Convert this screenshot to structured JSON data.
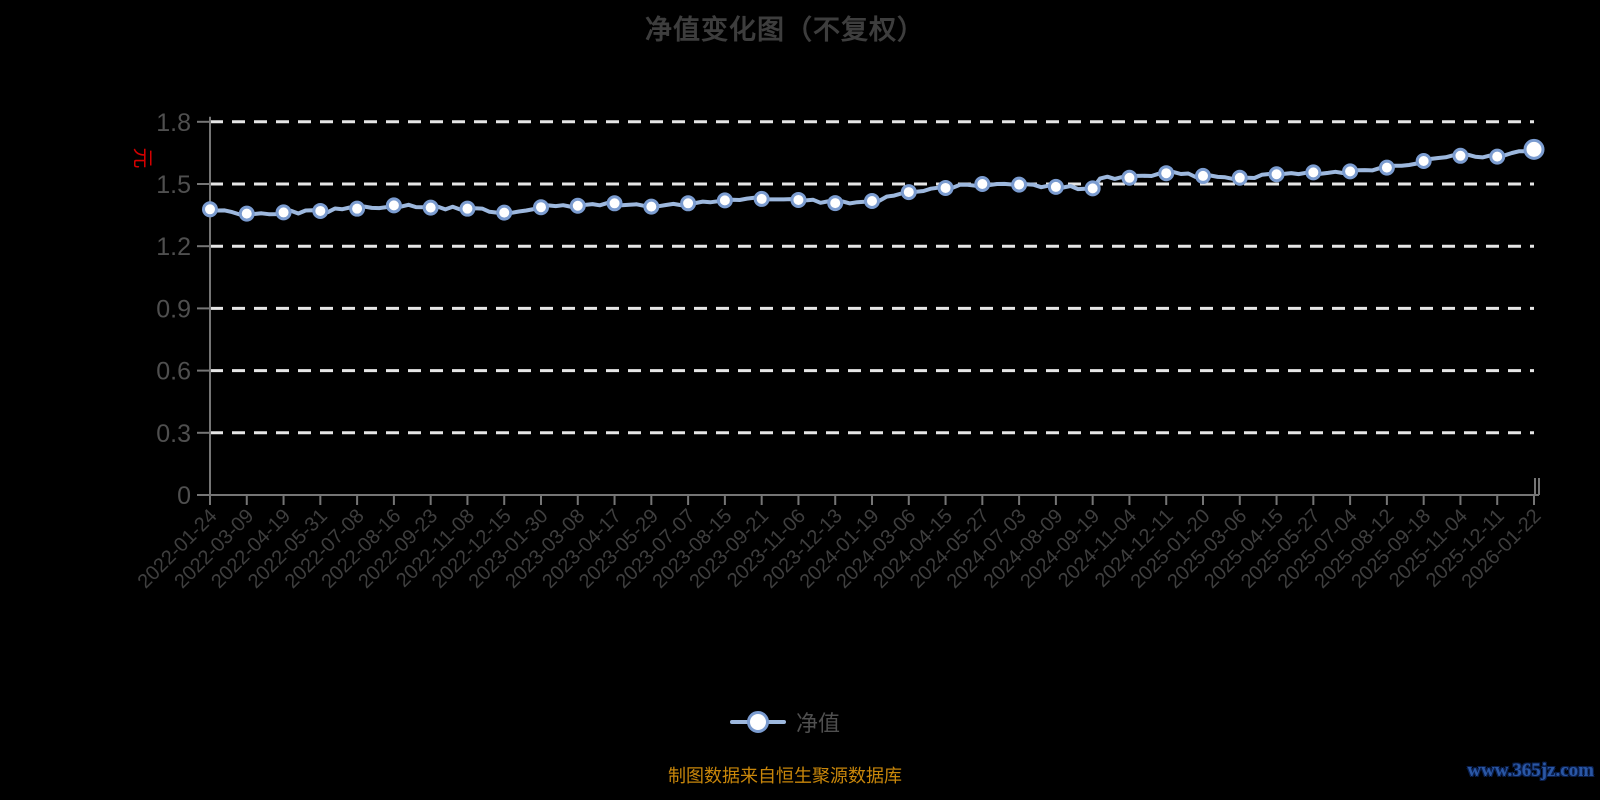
{
  "title": "净值变化图（不复权）",
  "axis_unit": "元",
  "legend": {
    "label": "净值"
  },
  "footer": {
    "source_text": "制图数据来自恒生聚源数据库",
    "watermark": "www.365jz.com"
  },
  "colors": {
    "background": "#000000",
    "title_text": "#3d3d3d",
    "series_line": "#9db8de",
    "point_fill": "#ffffff",
    "point_ring": "#7b9cd0",
    "grid_line": "#e6e6e6",
    "axis_line": "#757575",
    "y_label_text": "#4f4f4f",
    "x_label_text": "#3f3f3f",
    "unit_text": "#d40000",
    "legend_text": "#4f4f4f",
    "source_text": "#c8860a",
    "watermark_text": "#2a57a5"
  },
  "chart_data": {
    "type": "line",
    "title": "净值变化图（不复权）",
    "ylabel": "元",
    "xlabel": "",
    "ylim": [
      0,
      1.8
    ],
    "yticks": [
      0,
      0.3,
      0.6,
      0.9,
      1.2,
      1.5,
      1.8
    ],
    "grid": "horizontal dashed white lines",
    "legend_position": "bottom center",
    "x": [
      "2022-01-24",
      "2022-03-09",
      "2022-04-19",
      "2022-05-31",
      "2022-07-08",
      "2022-08-16",
      "2022-09-23",
      "2022-11-08",
      "2022-12-15",
      "2023-01-30",
      "2023-03-08",
      "2023-04-17",
      "2023-05-29",
      "2023-07-07",
      "2023-08-15",
      "2023-09-21",
      "2023-11-06",
      "2023-12-13",
      "2024-01-19",
      "2024-03-06",
      "2024-04-15",
      "2024-05-27",
      "2024-07-03",
      "2024-08-09",
      "2024-09-19",
      "2024-11-04",
      "2024-12-11",
      "2025-01-20",
      "2025-03-06",
      "2025-04-15",
      "2025-05-27",
      "2025-07-04",
      "2025-08-12",
      "2025-09-18",
      "2025-11-04",
      "2025-12-11",
      "2026-01-22"
    ],
    "series": [
      {
        "name": "净值",
        "values": [
          1.378,
          1.357,
          1.363,
          1.37,
          1.381,
          1.397,
          1.386,
          1.381,
          1.362,
          1.388,
          1.395,
          1.407,
          1.391,
          1.407,
          1.421,
          1.428,
          1.423,
          1.408,
          1.418,
          1.461,
          1.481,
          1.5,
          1.497,
          1.486,
          1.479,
          1.53,
          1.552,
          1.539,
          1.53,
          1.547,
          1.556,
          1.561,
          1.579,
          1.611,
          1.636,
          1.632,
          1.667
        ]
      }
    ]
  }
}
